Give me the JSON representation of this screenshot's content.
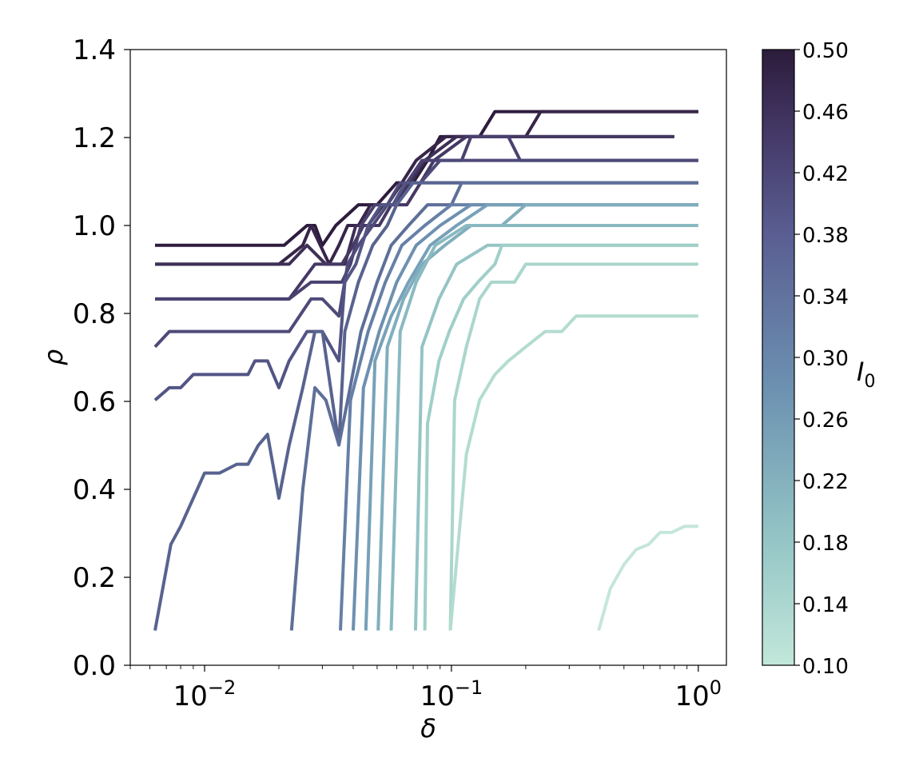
{
  "chart_data": {
    "type": "line",
    "title": "",
    "xlabel": "δ",
    "ylabel": "ρ",
    "xscale": "log",
    "xlim": [
      0.005,
      1.3
    ],
    "ylim": [
      0.0,
      1.4
    ],
    "x_ticks": [
      {
        "value": 0.01,
        "base": "10",
        "exp": "−2"
      },
      {
        "value": 0.1,
        "base": "10",
        "exp": "−1"
      },
      {
        "value": 1.0,
        "base": "10",
        "exp": "0"
      }
    ],
    "y_ticks": [
      "0.0",
      "0.2",
      "0.4",
      "0.6",
      "0.8",
      "1.0",
      "1.2",
      "1.4"
    ],
    "grid": false,
    "colorbar": {
      "label": "I",
      "label_sub": "0",
      "range": [
        0.1,
        0.5
      ],
      "ticks": [
        "0.10",
        "0.14",
        "0.18",
        "0.22",
        "0.26",
        "0.30",
        "0.34",
        "0.38",
        "0.42",
        "0.46",
        "0.50"
      ],
      "color_low": "#bfe6d9",
      "color_mid": "#6d91b1",
      "color_high": "#2d1d3d"
    },
    "series": [
      {
        "I0": 0.5,
        "color": "#2e1c3e",
        "points": [
          [
            0.0063,
            0.955
          ],
          [
            0.021,
            0.955
          ],
          [
            0.026,
            1.0
          ],
          [
            0.028,
            1.0
          ],
          [
            0.03,
            0.955
          ],
          [
            0.034,
            1.0
          ],
          [
            0.042,
            1.047
          ],
          [
            0.05,
            1.047
          ],
          [
            0.06,
            1.097
          ],
          [
            0.07,
            1.097
          ],
          [
            0.08,
            1.148
          ],
          [
            0.09,
            1.202
          ],
          [
            0.13,
            1.202
          ],
          [
            0.15,
            1.259
          ],
          [
            1.0,
            1.259
          ]
        ]
      },
      {
        "I0": 0.48,
        "color": "#372549",
        "points": [
          [
            0.0063,
            0.912
          ],
          [
            0.02,
            0.912
          ],
          [
            0.025,
            0.955
          ],
          [
            0.027,
            1.0
          ],
          [
            0.032,
            0.912
          ],
          [
            0.035,
            0.955
          ],
          [
            0.038,
            1.0
          ],
          [
            0.042,
            1.0
          ],
          [
            0.047,
            1.047
          ],
          [
            0.055,
            1.047
          ],
          [
            0.063,
            1.097
          ],
          [
            0.072,
            1.148
          ],
          [
            0.095,
            1.202
          ],
          [
            0.2,
            1.202
          ],
          [
            0.23,
            1.259
          ],
          [
            1.0,
            1.259
          ]
        ]
      },
      {
        "I0": 0.46,
        "color": "#3e2f57",
        "points": [
          [
            0.0063,
            0.912
          ],
          [
            0.022,
            0.912
          ],
          [
            0.026,
            0.955
          ],
          [
            0.031,
            0.912
          ],
          [
            0.037,
            0.912
          ],
          [
            0.041,
            1.0
          ],
          [
            0.046,
            1.0
          ],
          [
            0.053,
            1.047
          ],
          [
            0.06,
            1.047
          ],
          [
            0.068,
            1.097
          ],
          [
            0.078,
            1.148
          ],
          [
            0.105,
            1.202
          ],
          [
            0.8,
            1.202
          ]
        ]
      },
      {
        "I0": 0.44,
        "color": "#453863",
        "points": [
          [
            0.0063,
            0.833
          ],
          [
            0.022,
            0.833
          ],
          [
            0.028,
            0.912
          ],
          [
            0.036,
            0.912
          ],
          [
            0.04,
            0.955
          ],
          [
            0.044,
            1.0
          ],
          [
            0.051,
            1.0
          ],
          [
            0.057,
            1.047
          ],
          [
            0.066,
            1.047
          ],
          [
            0.075,
            1.097
          ],
          [
            0.085,
            1.148
          ],
          [
            0.115,
            1.202
          ],
          [
            0.7,
            1.202
          ],
          [
            0.78,
            1.202
          ]
        ]
      },
      {
        "I0": 0.42,
        "color": "#4a4170",
        "points": [
          [
            0.0063,
            0.833
          ],
          [
            0.022,
            0.833
          ],
          [
            0.027,
            0.871
          ],
          [
            0.036,
            0.871
          ],
          [
            0.039,
            0.912
          ],
          [
            0.043,
            1.0
          ],
          [
            0.049,
            1.047
          ],
          [
            0.058,
            1.047
          ],
          [
            0.066,
            1.097
          ],
          [
            0.076,
            1.148
          ],
          [
            0.11,
            1.148
          ],
          [
            0.12,
            1.202
          ],
          [
            0.17,
            1.202
          ],
          [
            0.19,
            1.148
          ],
          [
            1.0,
            1.148
          ]
        ]
      },
      {
        "I0": 0.4,
        "color": "#4e4a79",
        "points": [
          [
            0.0063,
            0.724
          ],
          [
            0.0072,
            0.759
          ],
          [
            0.022,
            0.759
          ],
          [
            0.027,
            0.833
          ],
          [
            0.03,
            0.833
          ],
          [
            0.035,
            0.794
          ],
          [
            0.038,
            0.912
          ],
          [
            0.042,
            0.955
          ],
          [
            0.048,
            1.0
          ],
          [
            0.055,
            1.047
          ],
          [
            0.062,
            1.097
          ],
          [
            0.075,
            1.097
          ],
          [
            0.09,
            1.148
          ],
          [
            1.0,
            1.148
          ]
        ]
      },
      {
        "I0": 0.38,
        "color": "#525584",
        "points": [
          [
            0.0063,
            0.603
          ],
          [
            0.0072,
            0.631
          ],
          [
            0.008,
            0.631
          ],
          [
            0.009,
            0.661
          ],
          [
            0.015,
            0.661
          ],
          [
            0.016,
            0.692
          ],
          [
            0.018,
            0.692
          ],
          [
            0.02,
            0.631
          ],
          [
            0.022,
            0.692
          ],
          [
            0.026,
            0.759
          ],
          [
            0.03,
            0.759
          ],
          [
            0.035,
            0.692
          ],
          [
            0.037,
            0.871
          ],
          [
            0.041,
            0.912
          ],
          [
            0.046,
            1.0
          ],
          [
            0.052,
            1.047
          ],
          [
            0.058,
            1.047
          ],
          [
            0.065,
            1.097
          ],
          [
            0.25,
            1.097
          ],
          [
            1.0,
            1.097
          ]
        ]
      },
      {
        "I0": 0.36,
        "color": "#58638f",
        "points": [
          [
            0.0063,
            0.079
          ],
          [
            0.0073,
            0.275
          ],
          [
            0.008,
            0.316
          ],
          [
            0.009,
            0.38
          ],
          [
            0.01,
            0.437
          ],
          [
            0.0115,
            0.437
          ],
          [
            0.0135,
            0.457
          ],
          [
            0.015,
            0.457
          ],
          [
            0.0165,
            0.5
          ],
          [
            0.018,
            0.525
          ],
          [
            0.02,
            0.38
          ],
          [
            0.022,
            0.5
          ],
          [
            0.025,
            0.631
          ],
          [
            0.028,
            0.759
          ],
          [
            0.03,
            0.759
          ],
          [
            0.035,
            0.501
          ],
          [
            0.037,
            0.759
          ],
          [
            0.042,
            0.871
          ],
          [
            0.048,
            0.955
          ],
          [
            0.055,
            1.0
          ],
          [
            0.06,
            1.047
          ],
          [
            0.07,
            1.097
          ],
          [
            1.0,
            1.097
          ]
        ]
      },
      {
        "I0": 0.34,
        "color": "#5e6f98",
        "points": [
          [
            0.0225,
            0.079
          ],
          [
            0.025,
            0.4
          ],
          [
            0.028,
            0.631
          ],
          [
            0.031,
            0.603
          ],
          [
            0.035,
            0.501
          ],
          [
            0.038,
            0.603
          ],
          [
            0.043,
            0.759
          ],
          [
            0.05,
            0.871
          ],
          [
            0.057,
            0.955
          ],
          [
            0.067,
            1.0
          ],
          [
            0.08,
            1.047
          ],
          [
            0.1,
            1.047
          ],
          [
            0.11,
            1.097
          ],
          [
            1.0,
            1.097
          ]
        ]
      },
      {
        "I0": 0.32,
        "color": "#6680a6",
        "points": [
          [
            0.0355,
            0.079
          ],
          [
            0.039,
            0.603
          ],
          [
            0.046,
            0.759
          ],
          [
            0.054,
            0.871
          ],
          [
            0.063,
            0.955
          ],
          [
            0.078,
            1.0
          ],
          [
            0.1,
            1.047
          ],
          [
            0.14,
            1.047
          ],
          [
            0.16,
            1.047
          ],
          [
            1.0,
            1.047
          ]
        ]
      },
      {
        "I0": 0.3,
        "color": "#6e90b0",
        "points": [
          [
            0.04,
            0.079
          ],
          [
            0.044,
            0.631
          ],
          [
            0.051,
            0.759
          ],
          [
            0.06,
            0.871
          ],
          [
            0.072,
            0.955
          ],
          [
            0.09,
            1.0
          ],
          [
            0.12,
            1.047
          ],
          [
            0.16,
            1.047
          ],
          [
            1.0,
            1.047
          ]
        ]
      },
      {
        "I0": 0.28,
        "color": "#77a1b8",
        "points": [
          [
            0.045,
            0.079
          ],
          [
            0.049,
            0.692
          ],
          [
            0.057,
            0.794
          ],
          [
            0.067,
            0.871
          ],
          [
            0.082,
            0.955
          ],
          [
            0.105,
            1.0
          ],
          [
            0.14,
            1.047
          ],
          [
            1.0,
            1.047
          ]
        ]
      },
      {
        "I0": 0.26,
        "color": "#80aebd",
        "points": [
          [
            0.0505,
            0.079
          ],
          [
            0.055,
            0.724
          ],
          [
            0.064,
            0.833
          ],
          [
            0.076,
            0.912
          ],
          [
            0.094,
            0.955
          ],
          [
            0.12,
            1.0
          ],
          [
            0.16,
            1.0
          ],
          [
            0.2,
            1.047
          ],
          [
            0.25,
            1.047
          ],
          [
            1.0,
            1.047
          ]
        ]
      },
      {
        "I0": 0.24,
        "color": "#8ab9c1",
        "points": [
          [
            0.057,
            0.079
          ],
          [
            0.062,
            0.759
          ],
          [
            0.072,
            0.871
          ],
          [
            0.086,
            0.955
          ],
          [
            0.115,
            1.0
          ],
          [
            1.0,
            1.0
          ]
        ]
      },
      {
        "I0": 0.22,
        "color": "#95c4c5",
        "points": [
          [
            0.0715,
            0.079
          ],
          [
            0.076,
            0.724
          ],
          [
            0.089,
            0.833
          ],
          [
            0.105,
            0.912
          ],
          [
            0.14,
            0.955
          ],
          [
            1.0,
            0.955
          ]
        ]
      },
      {
        "I0": 0.2,
        "color": "#a0cfc8",
        "points": [
          [
            0.078,
            0.079
          ],
          [
            0.08,
            0.55
          ],
          [
            0.089,
            0.692
          ],
          [
            0.098,
            0.759
          ],
          [
            0.112,
            0.833
          ],
          [
            0.128,
            0.871
          ],
          [
            0.15,
            0.912
          ],
          [
            0.16,
            0.955
          ],
          [
            1.0,
            0.955
          ]
        ]
      },
      {
        "I0": 0.18,
        "color": "#aad6cc",
        "points": [
          [
            0.099,
            0.079
          ],
          [
            0.103,
            0.603
          ],
          [
            0.115,
            0.724
          ],
          [
            0.13,
            0.833
          ],
          [
            0.145,
            0.871
          ],
          [
            0.18,
            0.871
          ],
          [
            0.2,
            0.912
          ],
          [
            1.0,
            0.912
          ]
        ]
      },
      {
        "I0": 0.16,
        "color": "#b3dcd0",
        "points": [
          [
            0.099,
            0.079
          ],
          [
            0.115,
            0.48
          ],
          [
            0.13,
            0.603
          ],
          [
            0.15,
            0.661
          ],
          [
            0.17,
            0.692
          ],
          [
            0.2,
            0.724
          ],
          [
            0.24,
            0.759
          ],
          [
            0.28,
            0.759
          ],
          [
            0.32,
            0.794
          ],
          [
            1.0,
            0.794
          ]
        ]
      },
      {
        "I0": 0.12,
        "color": "#c5e6da",
        "points": [
          [
            0.395,
            0.079
          ],
          [
            0.44,
            0.174
          ],
          [
            0.5,
            0.229
          ],
          [
            0.56,
            0.263
          ],
          [
            0.63,
            0.275
          ],
          [
            0.7,
            0.302
          ],
          [
            0.78,
            0.302
          ],
          [
            0.88,
            0.316
          ],
          [
            1.0,
            0.316
          ]
        ]
      }
    ]
  }
}
